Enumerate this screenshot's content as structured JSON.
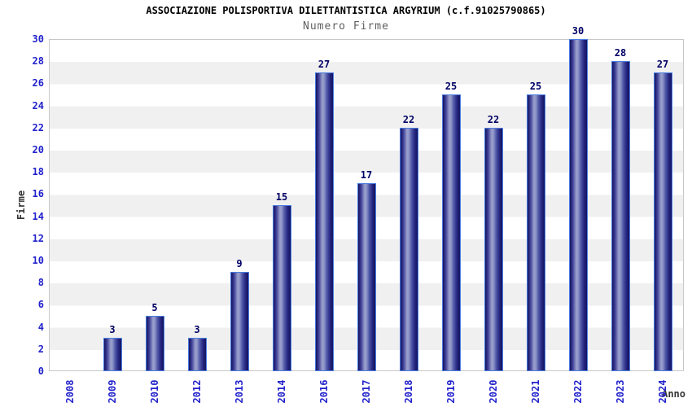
{
  "header": {
    "title": "ASSOCIAZIONE POLISPORTIVA DILETTANTISTICA ARGYRIUM (c.f.91025790865)",
    "subtitle": "Numero Firme"
  },
  "chart_data": {
    "type": "bar",
    "title": "ASSOCIAZIONE POLISPORTIVA DILETTANTISTICA ARGYRIUM (c.f.91025790865)",
    "subtitle": "Numero Firme",
    "categories": [
      "2008",
      "2009",
      "2010",
      "2012",
      "2013",
      "2014",
      "2016",
      "2017",
      "2018",
      "2019",
      "2020",
      "2021",
      "2022",
      "2023",
      "2024"
    ],
    "values": [
      0,
      3,
      5,
      3,
      9,
      15,
      27,
      17,
      22,
      25,
      22,
      25,
      30,
      28,
      27
    ],
    "xlabel": "Anno",
    "ylabel": "Firme",
    "ylim": [
      0,
      30
    ],
    "ytick_step": 2,
    "grid": "horizontal-bands-every-2",
    "legend": "none",
    "value_labels": "above-bars",
    "colors": {
      "bar_edge": "#4a7de0",
      "bar_dark": "#14145f",
      "bar_highlight": "#9aa0cc",
      "tick_label": "#2222cc",
      "value_label": "#000066",
      "band_gray": "#f0f0f0",
      "plot_border": "#c8c8c8",
      "title": "#000000",
      "subtitle": "#606060",
      "axis_title": "#333333"
    }
  }
}
